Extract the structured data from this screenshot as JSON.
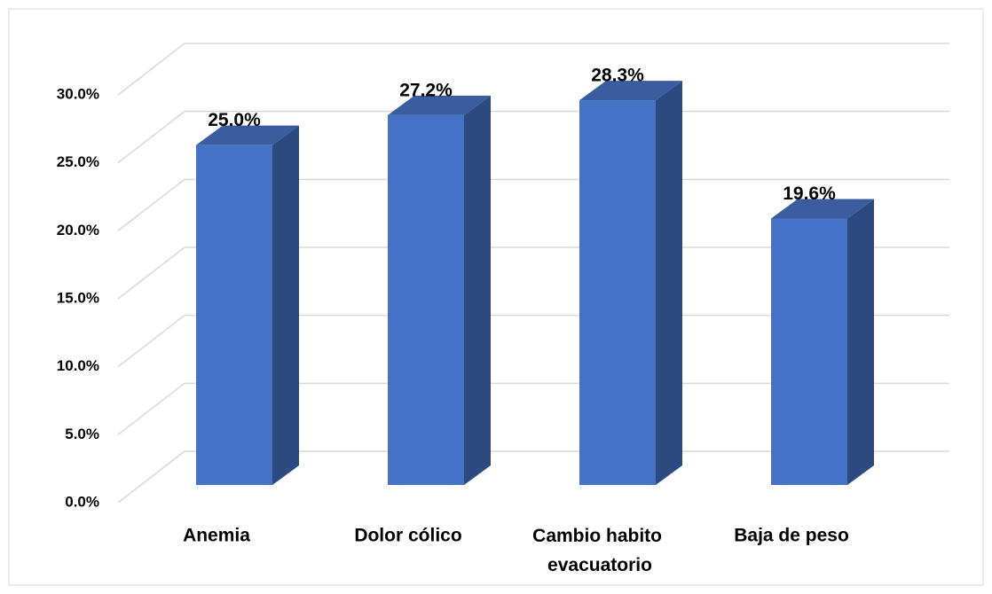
{
  "chart_data": {
    "type": "bar3d",
    "categories": [
      "Anemia",
      "Dolor cólico",
      "Cambio habito evacuatorio",
      "Baja de peso"
    ],
    "values": [
      25.0,
      27.2,
      28.3,
      19.6
    ],
    "value_labels": [
      "25.0%",
      "27.2%",
      "28.3%",
      "19.6%"
    ],
    "color": "#4472c4",
    "ylim": [
      0,
      30
    ],
    "yticks": [
      {
        "value": 0,
        "label": "0.0%"
      },
      {
        "value": 5,
        "label": "5.0%"
      },
      {
        "value": 10,
        "label": "10.0%"
      },
      {
        "value": 15,
        "label": "15.0%"
      },
      {
        "value": 20,
        "label": "20.0%"
      },
      {
        "value": 25,
        "label": "25.0%"
      },
      {
        "value": 30,
        "label": "30.0%"
      }
    ],
    "grid": true
  }
}
